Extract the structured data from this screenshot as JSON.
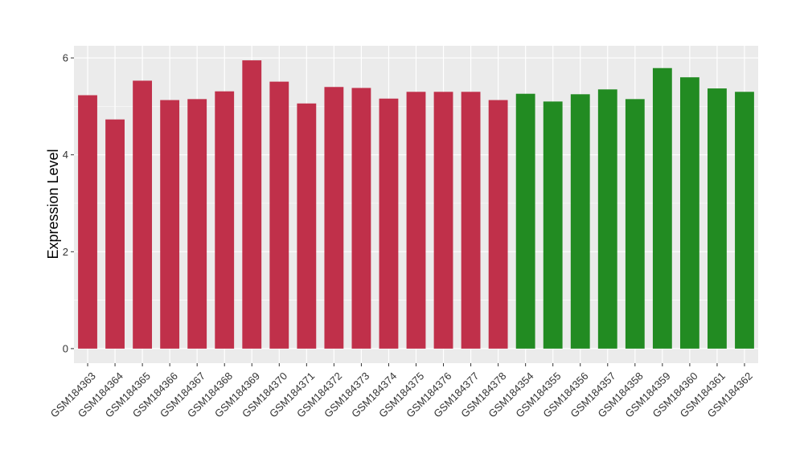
{
  "chart_data": {
    "type": "bar",
    "title": "",
    "xlabel": "",
    "ylabel": "Expression Level",
    "ylim": [
      -0.3,
      6.25
    ],
    "yticks": [
      0,
      2,
      4,
      6
    ],
    "grid": true,
    "categories": [
      "GSM184363",
      "GSM184364",
      "GSM184365",
      "GSM184366",
      "GSM184367",
      "GSM184368",
      "GSM184369",
      "GSM184370",
      "GSM184371",
      "GSM184372",
      "GSM184373",
      "GSM184374",
      "GSM184375",
      "GSM184376",
      "GSM184377",
      "GSM184378",
      "GSM184354",
      "GSM184355",
      "GSM184356",
      "GSM184357",
      "GSM184358",
      "GSM184359",
      "GSM184360",
      "GSM184361",
      "GSM184362"
    ],
    "values": [
      5.23,
      4.73,
      5.53,
      5.13,
      5.15,
      5.31,
      5.95,
      5.51,
      5.06,
      5.4,
      5.38,
      5.16,
      5.3,
      5.3,
      5.3,
      5.13,
      5.26,
      5.1,
      5.25,
      5.35,
      5.15,
      5.79,
      5.6,
      5.37,
      5.3
    ],
    "colors": [
      "#c0304a",
      "#c0304a",
      "#c0304a",
      "#c0304a",
      "#c0304a",
      "#c0304a",
      "#c0304a",
      "#c0304a",
      "#c0304a",
      "#c0304a",
      "#c0304a",
      "#c0304a",
      "#c0304a",
      "#c0304a",
      "#c0304a",
      "#c0304a",
      "#228b22",
      "#228b22",
      "#228b22",
      "#228b22",
      "#228b22",
      "#228b22",
      "#228b22",
      "#228b22",
      "#228b22"
    ],
    "panel_background": "#ebebeb",
    "grid_color": "#ffffff"
  }
}
